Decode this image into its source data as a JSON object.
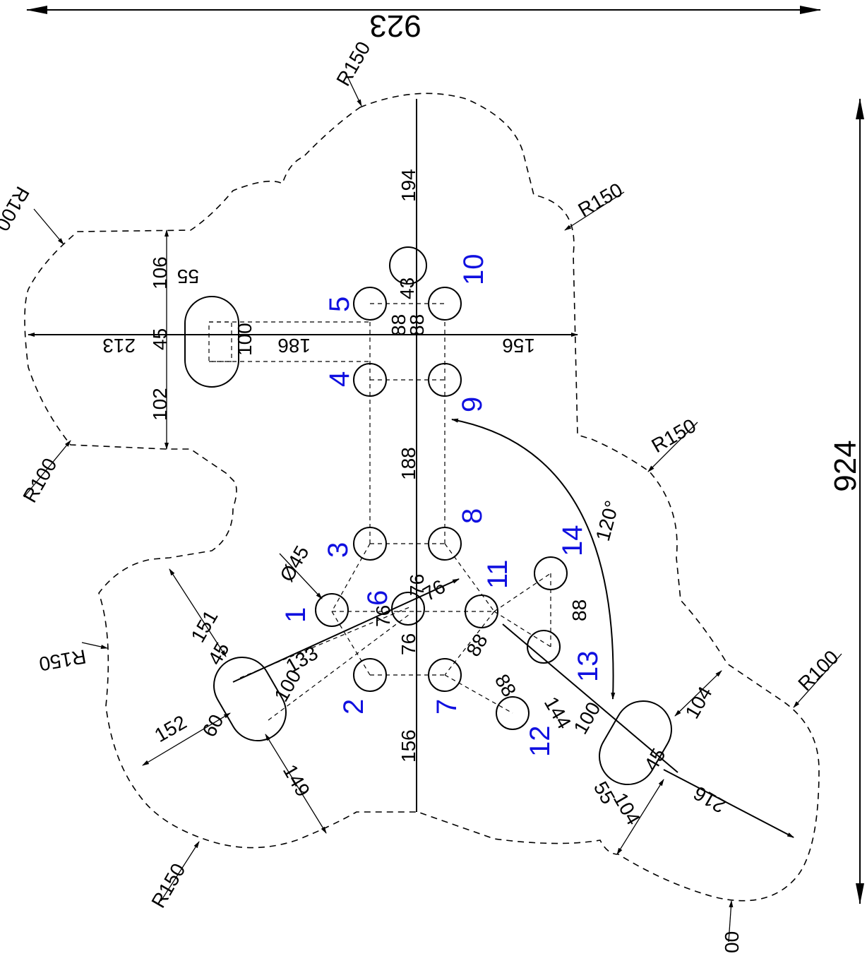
{
  "overall": {
    "width": "923",
    "height": "924"
  },
  "radii": {
    "r150_top": "R150",
    "r150_right": "R150",
    "r150_mid_right": "R150",
    "r150_left": "R150",
    "r150_bottom_left": "R150",
    "r100_top_left": "R100",
    "r100_left": "R100",
    "r100_right": "R100",
    "r100_bottom": "00"
  },
  "angle": "120°",
  "hole_diameter": "Ø45",
  "dims": {
    "d194": "194",
    "d43": "43",
    "d88a": "88",
    "d88b": "88",
    "d156_right": "156",
    "d186": "186",
    "d100_top": "100",
    "d55_top": "55",
    "d106": "106",
    "d45_top": "45",
    "d102": "102",
    "d213": "213",
    "d188": "188",
    "d76a": "76",
    "d76b": "76",
    "d76c": "76",
    "d76d": "76",
    "d133": "133",
    "d100_left": "100",
    "d45_left": "45",
    "d151": "151",
    "d60": "60",
    "d152": "152",
    "d149": "149",
    "d156_bottom": "156",
    "d88c": "88",
    "d88d": "88",
    "d88e": "88",
    "d144": "144",
    "d100_br": "100",
    "d104a": "104",
    "d45_br": "45",
    "d55_br": "55",
    "d104b": "104",
    "d216": "216"
  },
  "holes": [
    "1",
    "2",
    "3",
    "4",
    "5",
    "6",
    "7",
    "8",
    "9",
    "10",
    "11",
    "12",
    "13",
    "14"
  ]
}
